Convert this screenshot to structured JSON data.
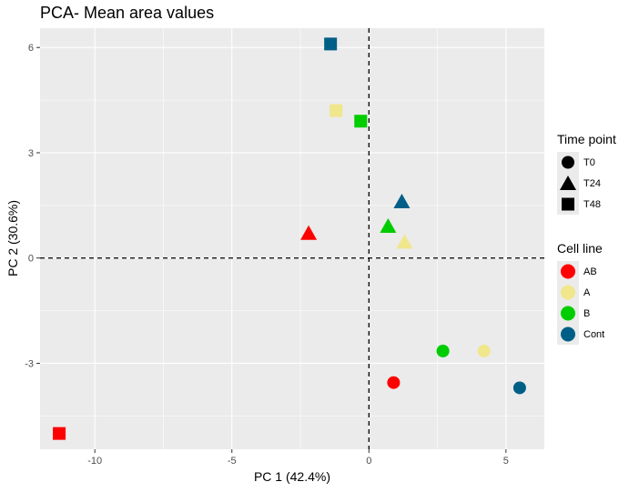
{
  "chart_data": {
    "type": "scatter",
    "title": "PCA- Mean area values",
    "xlabel": "PC 1 (42.4%)",
    "ylabel": "PC 2 (30.6%)",
    "xlim": [
      -12.0,
      6.4
    ],
    "ylim": [
      -5.45,
      6.55
    ],
    "x_ticks": [
      -10,
      -5,
      0,
      5
    ],
    "y_ticks": [
      -3,
      0,
      3,
      6
    ],
    "x_tick_labels": [
      "-10",
      "-5",
      "0",
      "5"
    ],
    "y_tick_labels": [
      "-3",
      "0",
      "3",
      "6"
    ],
    "grid": true,
    "reference_lines": {
      "x": 0,
      "y": 0,
      "style": "dashed"
    },
    "legend_position": "right",
    "colors": {
      "AB": "#ff0000",
      "A": "#f0e68c",
      "B": "#00cd00",
      "Cont": "#005f87"
    },
    "legends": [
      {
        "title": "Time point",
        "entries": [
          {
            "label": "T0",
            "shape": "circle"
          },
          {
            "label": "T24",
            "shape": "triangle"
          },
          {
            "label": "T48",
            "shape": "square"
          }
        ]
      },
      {
        "title": "Cell line",
        "entries": [
          {
            "label": "AB",
            "color": "#ff0000"
          },
          {
            "label": "A",
            "color": "#f0e68c"
          },
          {
            "label": "B",
            "color": "#00cd00"
          },
          {
            "label": "Cont",
            "color": "#005f87"
          }
        ]
      }
    ],
    "points": [
      {
        "cell_line": "AB",
        "time": "T0",
        "x": 0.9,
        "y": -3.55
      },
      {
        "cell_line": "A",
        "time": "T0",
        "x": 4.2,
        "y": -2.65
      },
      {
        "cell_line": "B",
        "time": "T0",
        "x": 2.7,
        "y": -2.65
      },
      {
        "cell_line": "Cont",
        "time": "T0",
        "x": 5.5,
        "y": -3.7
      },
      {
        "cell_line": "AB",
        "time": "T24",
        "x": -2.2,
        "y": 0.7
      },
      {
        "cell_line": "A",
        "time": "T24",
        "x": 1.3,
        "y": 0.45
      },
      {
        "cell_line": "B",
        "time": "T24",
        "x": 0.7,
        "y": 0.9
      },
      {
        "cell_line": "Cont",
        "time": "T24",
        "x": 1.2,
        "y": 1.6
      },
      {
        "cell_line": "AB",
        "time": "T48",
        "x": -11.3,
        "y": -5.0
      },
      {
        "cell_line": "A",
        "time": "T48",
        "x": -1.2,
        "y": 4.2
      },
      {
        "cell_line": "B",
        "time": "T48",
        "x": -0.3,
        "y": 3.9
      },
      {
        "cell_line": "Cont",
        "time": "T48",
        "x": -1.4,
        "y": 6.1
      }
    ]
  }
}
